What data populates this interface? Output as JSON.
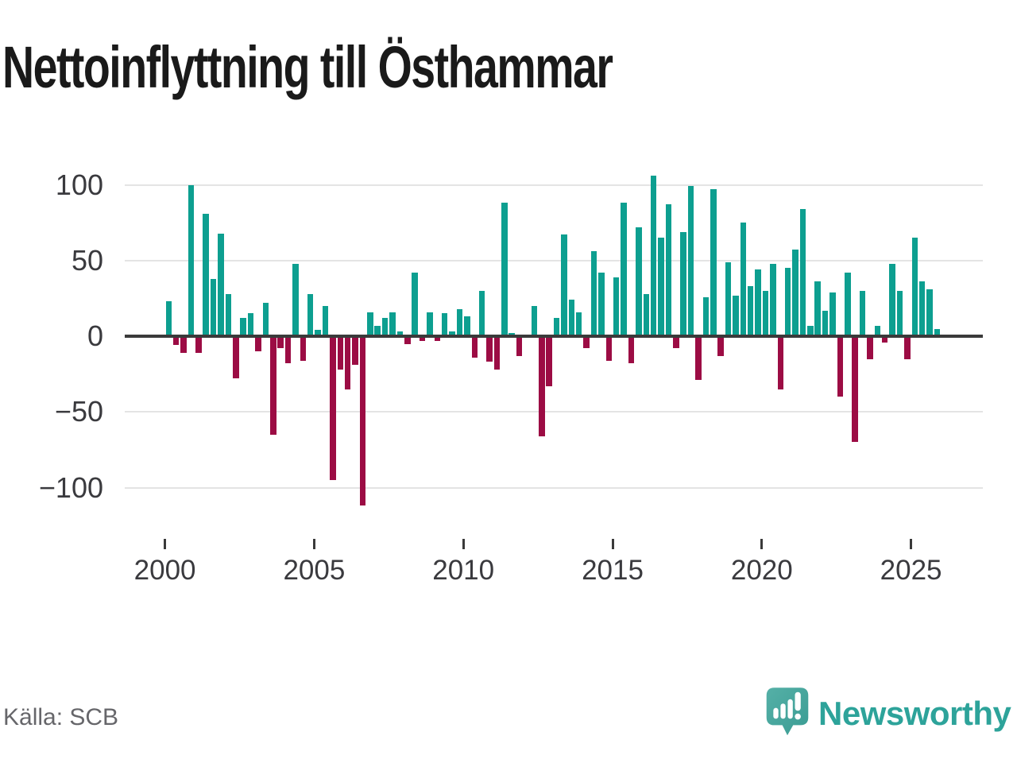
{
  "title": "Nettoinflyttning till Östhammar",
  "source": "Källa: SCB",
  "brand": {
    "name": "Newsworthy",
    "logo_icon": "newsworthy-speech-bubble-chart-icon"
  },
  "colors": {
    "positive_bar": "#0d9f90",
    "negative_bar": "#9c0c44",
    "zero_axis": "#3a3a3a",
    "gridline": "#e4e4e4",
    "tick_label": "#3a3a3e",
    "title_text": "#1a1a1a",
    "source_text": "#66666a",
    "brand_teal": "#2da39a"
  },
  "chart_data": {
    "type": "bar",
    "title": "Nettoinflyttning till Östhammar",
    "frequency": "quarterly",
    "x_start": "2000-Q1",
    "x_end": "2025-Q4",
    "values": [
      23,
      -6,
      -11,
      100,
      -11,
      81,
      38,
      68,
      28,
      -28,
      12,
      15,
      -10,
      22,
      -65,
      -8,
      -18,
      48,
      -16,
      28,
      4,
      20,
      -95,
      -22,
      -35,
      -19,
      -112,
      16,
      7,
      12,
      16,
      3,
      -5,
      42,
      -3,
      16,
      -3,
      15,
      3,
      18,
      13,
      -14,
      30,
      -17,
      -22,
      88,
      2,
      -13,
      0,
      20,
      -66,
      -33,
      12,
      67,
      24,
      16,
      -8,
      56,
      42,
      -16,
      39,
      88,
      -18,
      72,
      28,
      106,
      65,
      87,
      -8,
      69,
      99,
      -29,
      26,
      97,
      -13,
      49,
      27,
      75,
      33,
      44,
      30,
      48,
      -35,
      45,
      57,
      84,
      7,
      36,
      17,
      29,
      -40,
      42,
      -70,
      30,
      -15,
      7,
      -4,
      48,
      30,
      -15,
      65,
      36,
      31,
      5
    ],
    "x_tick_years": [
      2000,
      2005,
      2010,
      2015,
      2020,
      2025
    ],
    "x_tick_labels": [
      "2000",
      "2005",
      "2010",
      "2015",
      "2020",
      "2025"
    ],
    "y_ticks": [
      100,
      50,
      0,
      -50,
      -100
    ],
    "y_tick_labels": [
      "100",
      "50",
      "0",
      "−50",
      "−100"
    ],
    "ylim": [
      -120,
      115
    ],
    "grid": true,
    "legend": "none",
    "bar_positive_color": "#0d9f90",
    "bar_negative_color": "#9c0c44"
  }
}
